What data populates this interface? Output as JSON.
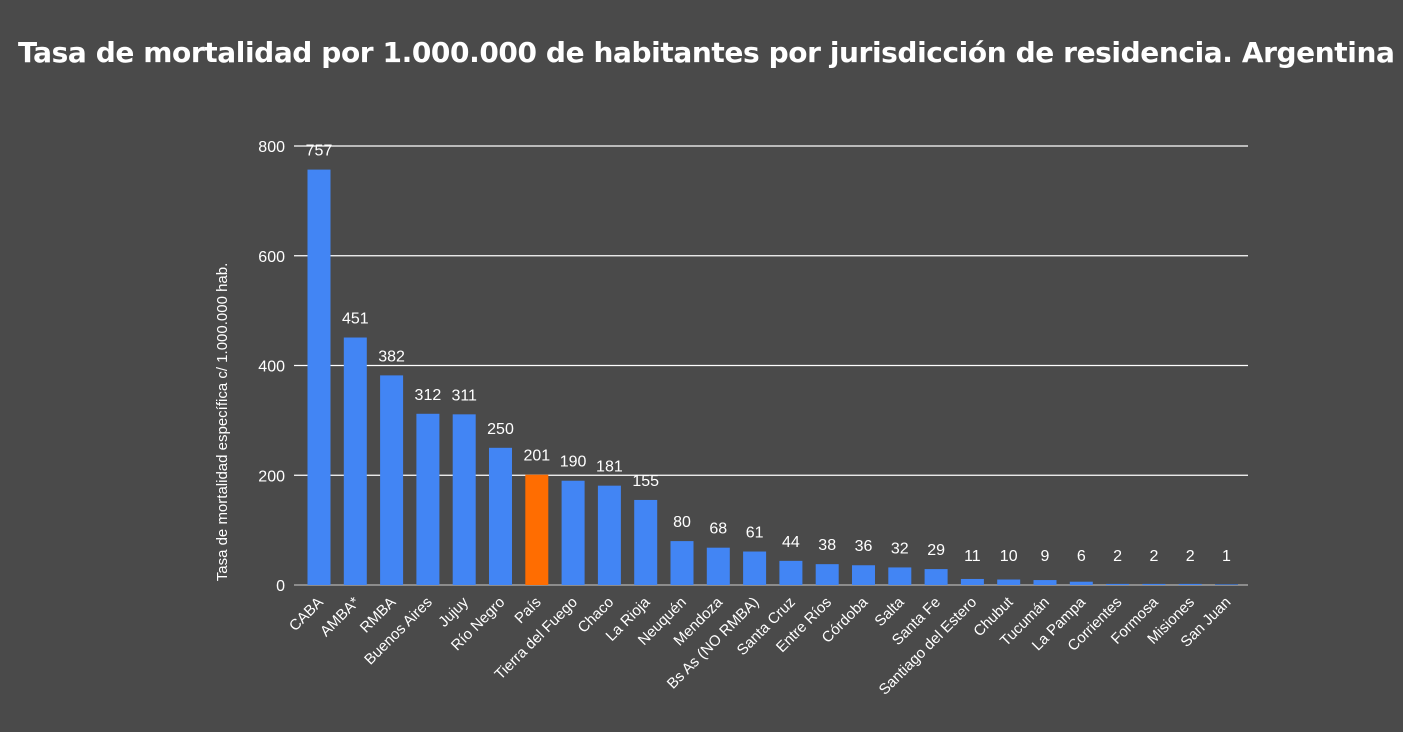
{
  "title": "Tasa de mortalidad por 1.000.000 de habitantes por jurisdicción de residencia. Argentina",
  "colors": {
    "background": "#4a4a4a",
    "bar": "#4285f4",
    "highlight": "#ff6d01",
    "grid": "#ffffff",
    "text": "#ffffff"
  },
  "chart_data": {
    "type": "bar",
    "title": "Tasa de mortalidad por 1.000.000 de habitantes por jurisdicción de residencia. Argentina",
    "xlabel": "",
    "ylabel": "Tasa de mortalidad específica c/ 1.000.000 hab.",
    "ylim": [
      0,
      800
    ],
    "yticks": [
      0,
      200,
      400,
      600,
      800
    ],
    "grid": true,
    "legend": "none",
    "highlight_category": "País",
    "categories": [
      "CABA",
      "AMBA*",
      "RMBA",
      "Buenos Aires",
      "Jujuy",
      "Río Negro",
      "País",
      "Tierra del Fuego",
      "Chaco",
      "La Rioja",
      "Neuquén",
      "Mendoza",
      "Bs As (NO RMBA)",
      "Santa Cruz",
      "Entre Ríos",
      "Córdoba",
      "Salta",
      "Santa Fe",
      "Santiago del Estero",
      "Chubut",
      "Tucumán",
      "La Pampa",
      "Corrientes",
      "Formosa",
      "Misiones",
      "San Juan"
    ],
    "values": [
      757,
      451,
      382,
      312,
      311,
      250,
      201,
      190,
      181,
      155,
      80,
      68,
      61,
      44,
      38,
      36,
      32,
      29,
      11,
      10,
      9,
      6,
      2,
      2,
      2,
      1
    ]
  }
}
